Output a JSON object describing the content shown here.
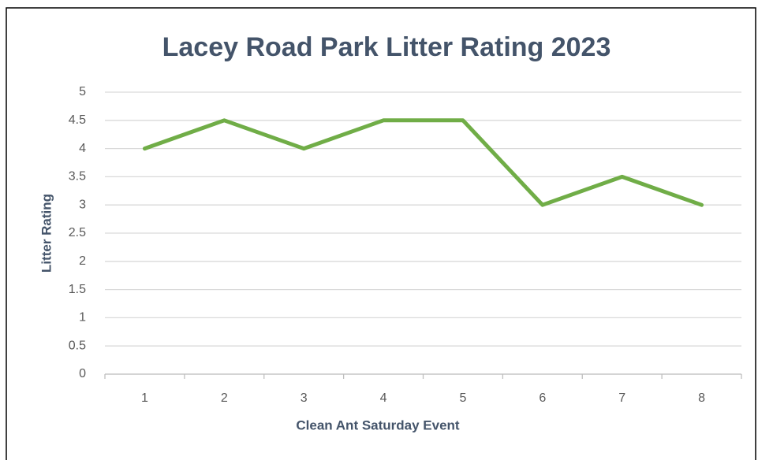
{
  "chart_data": {
    "type": "line",
    "title": "Lacey Road Park Litter Rating 2023",
    "x_label": "Clean Ant Saturday Event",
    "y_label": "Litter Rating",
    "categories": [
      "1",
      "2",
      "3",
      "4",
      "5",
      "6",
      "7",
      "8"
    ],
    "values": [
      4,
      4.5,
      4,
      4.5,
      4.5,
      3,
      3.5,
      3
    ],
    "color": "#70ad47",
    "ylim": [
      0,
      5
    ],
    "yticks": [
      0,
      0.5,
      1,
      1.5,
      2,
      2.5,
      3,
      3.5,
      4,
      4.5,
      5
    ],
    "grid": true
  }
}
